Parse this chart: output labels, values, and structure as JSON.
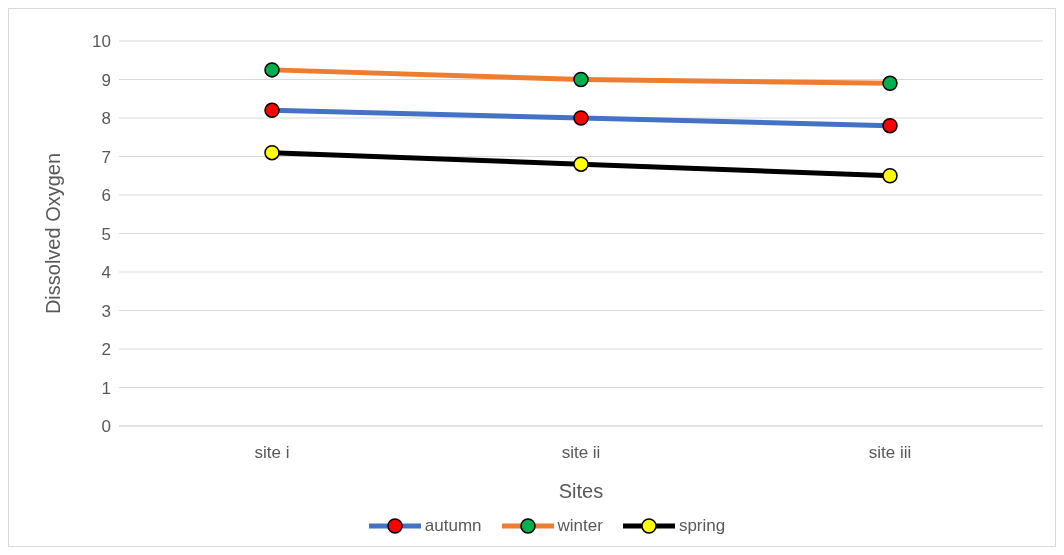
{
  "chart_data": {
    "type": "line",
    "xlabel": "Sites",
    "ylabel": "Dissolved Oxygen",
    "categories": [
      "site i",
      "site ii",
      "site iii"
    ],
    "series": [
      {
        "name": "autumn",
        "color": "#4472c4",
        "colors": [
          "#ff0000",
          "#ff0000",
          "#ff0000"
        ],
        "values": [
          8.2,
          8.0,
          7.8
        ]
      },
      {
        "name": "winter",
        "color": "#ed7d31",
        "colors": [
          "#00b050",
          "#00b050",
          "#00b050"
        ],
        "values": [
          9.25,
          9.0,
          8.9
        ]
      },
      {
        "name": "spring",
        "color": "#000000",
        "colors": [
          "#ffff00",
          "#ffff00",
          "#ffff00"
        ],
        "values": [
          7.1,
          6.8,
          6.5
        ]
      }
    ],
    "ylim": [
      0,
      10
    ],
    "yticks": [
      0,
      1,
      2,
      3,
      4,
      5,
      6,
      7,
      8,
      9,
      10
    ],
    "grid": "y",
    "legend": "bottom",
    "marker": "circle",
    "line_style": "solid"
  }
}
